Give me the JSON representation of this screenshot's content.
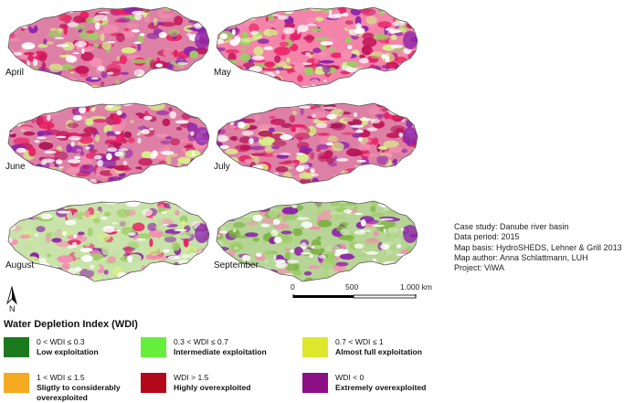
{
  "panels": [
    {
      "month": "April",
      "palette": [
        "#c2185b",
        "#e91e63",
        "#f48fb1",
        "#d6ef8a",
        "#9ccc65",
        "#8e24aa"
      ]
    },
    {
      "month": "May",
      "palette": [
        "#e91e63",
        "#f48fb1",
        "#d6ef8a",
        "#9ccc65",
        "#c2185b",
        "#8e24aa"
      ]
    },
    {
      "month": "June",
      "palette": [
        "#c2185b",
        "#e91e63",
        "#ad1457",
        "#f48fb1",
        "#d6ef8a",
        "#8e24aa"
      ]
    },
    {
      "month": "July",
      "palette": [
        "#c2185b",
        "#e91e63",
        "#ad1457",
        "#f48fb1",
        "#d6ef8a",
        "#8e24aa"
      ]
    },
    {
      "month": "August",
      "palette": [
        "#9ccc65",
        "#c5e1a5",
        "#d6ef8a",
        "#f48fb1",
        "#e91e63",
        "#8e24aa"
      ]
    },
    {
      "month": "September",
      "palette": [
        "#7cb342",
        "#9ccc65",
        "#c5e1a5",
        "#aed581",
        "#f48fb1",
        "#8e24aa"
      ]
    }
  ],
  "info": {
    "case_study": "Case study: Danube river basin",
    "period": "Data period: 2015",
    "basis": "Map basis: HydroSHEDS, Lehner & Grill 2013",
    "author": "Map author:  Anna Schlattmann, LUH",
    "project": "Project: ViWA"
  },
  "scalebar": {
    "labels": [
      "0",
      "500",
      "1.000 km"
    ]
  },
  "north_arrow": {
    "label": "N"
  },
  "legend": {
    "title": "Water Depletion Index (WDI)",
    "items": [
      {
        "range": "0 < WDI ≤ 0.3",
        "desc": "Low exploitation",
        "color": "#1b7a1e"
      },
      {
        "range": "0.3 < WDI ≤ 0.7",
        "desc": "Intermediate exploitation",
        "color": "#66ef3a"
      },
      {
        "range": "0.7 < WDI ≤ 1",
        "desc": "Almost full exploitation",
        "color": "#dde82c"
      },
      {
        "range": "1 < WDI ≤ 1.5",
        "desc": "Sligtly to considerably overexploited",
        "color": "#f5aa22"
      },
      {
        "range": "WDI > 1.5",
        "desc": "Highly overexploited",
        "color": "#b3081a"
      },
      {
        "range": "WDI < 0",
        "desc": "Extremely overexploited",
        "color": "#8c0f86"
      }
    ]
  }
}
